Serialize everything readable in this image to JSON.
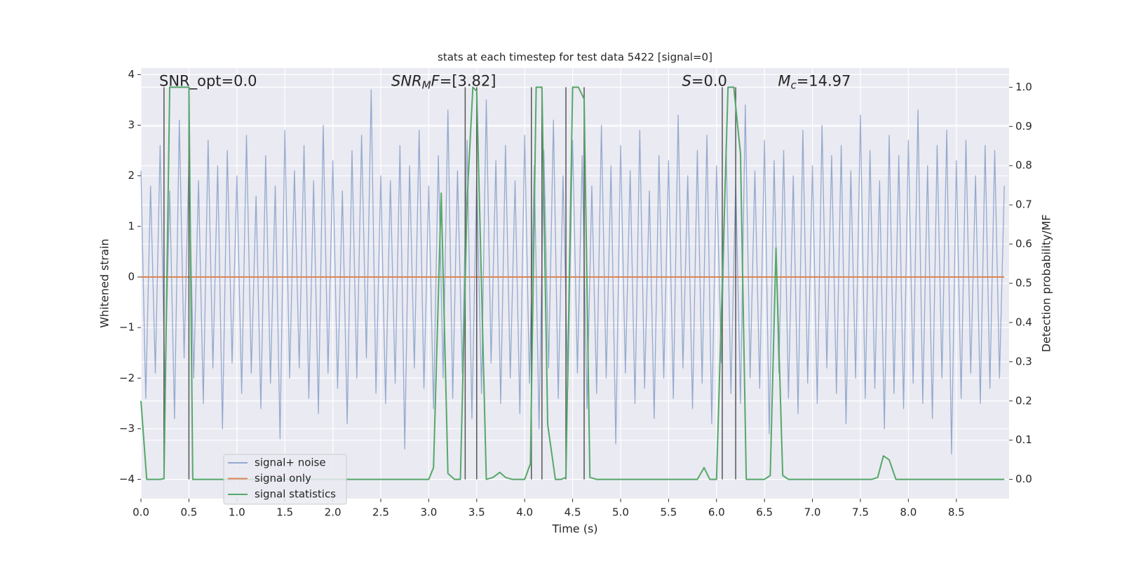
{
  "chart_data": {
    "type": "line",
    "title": "stats at each timestep for test data 5422 [signal=0]",
    "xlabel": "Time (s)",
    "ylabel": "Whitened strain",
    "y2label": "Detection probability/MF",
    "xlim": [
      0,
      9.05
    ],
    "ylim": [
      -4.38,
      4.13
    ],
    "y2lim": [
      -0.049,
      1.049
    ],
    "xticks": [
      {
        "value": 0,
        "label": "0.0"
      },
      0.5,
      {
        "value": 1,
        "label": "1.0"
      },
      1.5,
      {
        "value": 2,
        "label": "2.0"
      },
      2.5,
      {
        "value": 3,
        "label": "3.0"
      },
      3.5,
      {
        "value": 4,
        "label": "4.0"
      },
      4.5,
      {
        "value": 5,
        "label": "5.0"
      },
      5.5,
      {
        "value": 6,
        "label": "6.0"
      },
      6.5,
      {
        "value": 7,
        "label": "7.0"
      },
      7.5,
      {
        "value": 8,
        "label": "8.0"
      },
      8.5
    ],
    "yticks": [
      {
        "value": -4,
        "label": "−4"
      },
      {
        "value": -3,
        "label": "−3"
      },
      {
        "value": -2,
        "label": "−2"
      },
      {
        "value": -1,
        "label": "−1"
      },
      0,
      1,
      2,
      3,
      4
    ],
    "y2ticks": [
      {
        "value": 0,
        "label": "0.0"
      },
      0.1,
      0.2,
      0.3,
      0.4,
      0.5,
      0.6,
      0.7,
      0.8,
      0.9,
      {
        "value": 1,
        "label": "1.0"
      }
    ],
    "grid": true,
    "legend": "lower left",
    "series": [
      {
        "name": "signal+ noise",
        "color": "#4c72b0",
        "x": [
          0,
          0.05,
          0.1,
          0.15,
          0.2,
          0.25,
          0.3,
          0.35,
          0.4,
          0.45,
          0.5,
          0.55,
          0.6,
          0.65,
          0.7,
          0.75,
          0.8,
          0.85,
          0.9,
          0.95,
          1,
          1.05,
          1.1,
          1.15,
          1.2,
          1.25,
          1.3,
          1.35,
          1.4,
          1.45,
          1.5,
          1.55,
          1.6,
          1.65,
          1.7,
          1.75,
          1.8,
          1.85,
          1.9,
          1.95,
          2,
          2.05,
          2.1,
          2.15,
          2.2,
          2.25,
          2.3,
          2.35,
          2.4,
          2.45,
          2.5,
          2.55,
          2.6,
          2.65,
          2.7,
          2.75,
          2.8,
          2.85,
          2.9,
          2.95,
          3,
          3.05,
          3.1,
          3.15,
          3.2,
          3.25,
          3.3,
          3.35,
          3.4,
          3.45,
          3.5,
          3.55,
          3.6,
          3.65,
          3.7,
          3.75,
          3.8,
          3.85,
          3.9,
          3.95,
          4,
          4.05,
          4.1,
          4.15,
          4.2,
          4.25,
          4.3,
          4.35,
          4.4,
          4.45,
          4.5,
          4.55,
          4.6,
          4.65,
          4.7,
          4.75,
          4.8,
          4.85,
          4.9,
          4.95,
          5,
          5.05,
          5.1,
          5.15,
          5.2,
          5.25,
          5.3,
          5.35,
          5.4,
          5.45,
          5.5,
          5.55,
          5.6,
          5.65,
          5.7,
          5.75,
          5.8,
          5.85,
          5.9,
          5.95,
          6,
          6.05,
          6.1,
          6.15,
          6.2,
          6.25,
          6.3,
          6.35,
          6.4,
          6.45,
          6.5,
          6.55,
          6.6,
          6.65,
          6.7,
          6.75,
          6.8,
          6.85,
          6.9,
          6.95,
          7,
          7.05,
          7.1,
          7.15,
          7.2,
          7.25,
          7.3,
          7.35,
          7.4,
          7.45,
          7.5,
          7.55,
          7.6,
          7.65,
          7.7,
          7.75,
          7.8,
          7.85,
          7.9,
          7.95,
          8,
          8.05,
          8.1,
          8.15,
          8.2,
          8.25,
          8.3,
          8.35,
          8.4,
          8.45,
          8.5,
          8.55,
          8.6,
          8.65,
          8.7,
          8.75,
          8.8,
          8.85,
          8.9,
          8.95,
          9
        ],
        "values": [
          2.1,
          -2.4,
          1.8,
          -1.9,
          2.6,
          -2.2,
          1.7,
          -2.8,
          3.1,
          -1.6,
          2.3,
          -2.0,
          1.9,
          -2.5,
          2.7,
          -1.8,
          2.2,
          -3.0,
          2.5,
          -1.7,
          2.0,
          -2.3,
          2.8,
          -1.9,
          1.6,
          -2.6,
          2.4,
          -2.1,
          1.8,
          -3.2,
          2.9,
          -2.0,
          2.1,
          -1.8,
          2.6,
          -2.4,
          1.9,
          -2.7,
          3.0,
          -1.9,
          2.3,
          -2.2,
          1.7,
          -2.9,
          2.5,
          -2.0,
          2.8,
          -1.6,
          3.7,
          -2.3,
          2.0,
          -2.5,
          1.9,
          -2.1,
          2.6,
          -3.4,
          2.2,
          -1.8,
          2.9,
          -2.2,
          1.8,
          -2.6,
          2.4,
          -2.0,
          3.3,
          -2.4,
          2.1,
          -1.9,
          2.7,
          -2.8,
          2.0,
          -2.3,
          3.5,
          -1.7,
          2.3,
          -2.5,
          2.6,
          -2.0,
          1.9,
          -2.7,
          2.8,
          -2.1,
          2.2,
          -3.0,
          2.5,
          -1.8,
          3.1,
          -2.4,
          2.0,
          -2.2,
          2.7,
          -1.9,
          2.4,
          -2.6,
          1.8,
          -2.3,
          3.0,
          -2.0,
          2.2,
          -3.3,
          2.6,
          -1.9,
          2.1,
          -2.5,
          2.9,
          -2.2,
          1.7,
          -2.8,
          2.4,
          -2.0,
          2.3,
          -2.4,
          3.2,
          -1.8,
          2.0,
          -2.6,
          2.5,
          -2.1,
          2.8,
          -2.9,
          2.2,
          -1.7,
          2.6,
          -2.3,
          1.9,
          -2.5,
          3.4,
          -2.0,
          2.1,
          -2.2,
          2.7,
          -3.1,
          2.3,
          -1.9,
          2.5,
          -2.4,
          2.0,
          -2.7,
          2.9,
          -2.1,
          2.2,
          -2.5,
          3.0,
          -1.8,
          2.4,
          -2.3,
          2.6,
          -2.9,
          2.1,
          -2.0,
          3.2,
          -2.4,
          2.5,
          -2.2,
          1.9,
          -3.0,
          2.8,
          -2.3,
          2.4,
          -2.6,
          2.7,
          -2.1,
          3.3,
          -2.5,
          2.2,
          -2.8,
          2.6,
          -2.0,
          2.9,
          -3.5,
          2.3,
          -2.4,
          2.7,
          -1.9,
          2.0,
          -2.5,
          2.6,
          -2.2,
          2.5,
          -2.0,
          1.8
        ]
      },
      {
        "name": "signal only",
        "color": "#dd8452",
        "x": [
          0,
          9
        ],
        "values": [
          0,
          0
        ]
      },
      {
        "name": "signal statistics",
        "color": "#55a868",
        "axis": "y2",
        "x": [
          0,
          0.06,
          0.2,
          0.24,
          0.3,
          0.5,
          0.54,
          3.0,
          3.05,
          3.13,
          3.2,
          3.27,
          3.33,
          3.4,
          3.46,
          3.5,
          3.6,
          3.67,
          3.74,
          3.8,
          3.87,
          4.0,
          4.06,
          4.12,
          4.18,
          4.24,
          4.32,
          4.38,
          4.43,
          4.5,
          4.56,
          4.62,
          4.68,
          4.75,
          5.8,
          5.87,
          5.93,
          6.0,
          6.06,
          6.12,
          6.18,
          6.25,
          6.31,
          6.5,
          6.56,
          6.62,
          6.69,
          6.75,
          7.62,
          7.68,
          7.74,
          7.8,
          7.87,
          9.0
        ],
        "values": [
          0.2,
          0,
          0,
          0.002,
          1,
          1,
          0,
          0,
          0.03,
          0.73,
          0.015,
          0,
          0,
          0.71,
          1,
          0.99,
          0,
          0.005,
          0.018,
          0.005,
          0,
          0,
          0.04,
          1,
          1,
          0.14,
          0,
          0,
          0.005,
          1,
          1,
          0.97,
          0.005,
          0,
          0,
          0.03,
          0,
          0,
          0.5,
          1,
          1,
          0.83,
          0,
          0,
          0.01,
          0.59,
          0.01,
          0,
          0,
          0.005,
          0.06,
          0.05,
          0,
          0
        ]
      }
    ],
    "vlines": {
      "axis": "y2",
      "color": "#555555",
      "x": [
        0.24,
        0.5,
        3.38,
        3.5,
        4.07,
        4.18,
        4.43,
        4.62,
        6.06,
        6.2
      ],
      "ymin": 0,
      "ymax": 1
    },
    "annotations": [
      {
        "x": 0.19,
        "y": 3.86,
        "parts": [
          {
            "text": "SNR_opt=0.0"
          }
        ]
      },
      {
        "x": 2.61,
        "y": 3.86,
        "parts": [
          {
            "text": "SNR",
            "italic": true
          },
          {
            "text": "M",
            "italic": true,
            "sub": true
          },
          {
            "text": "F",
            "italic": true
          },
          {
            "text": "=[3.82]"
          }
        ]
      },
      {
        "x": 5.64,
        "y": 3.86,
        "parts": [
          {
            "text": "S",
            "italic": true
          },
          {
            "text": "=0.0"
          }
        ]
      },
      {
        "x": 6.64,
        "y": 3.86,
        "parts": [
          {
            "text": "M",
            "italic": true
          },
          {
            "text": "c",
            "italic": true,
            "sub": true
          },
          {
            "text": "=14.97"
          }
        ]
      }
    ]
  }
}
